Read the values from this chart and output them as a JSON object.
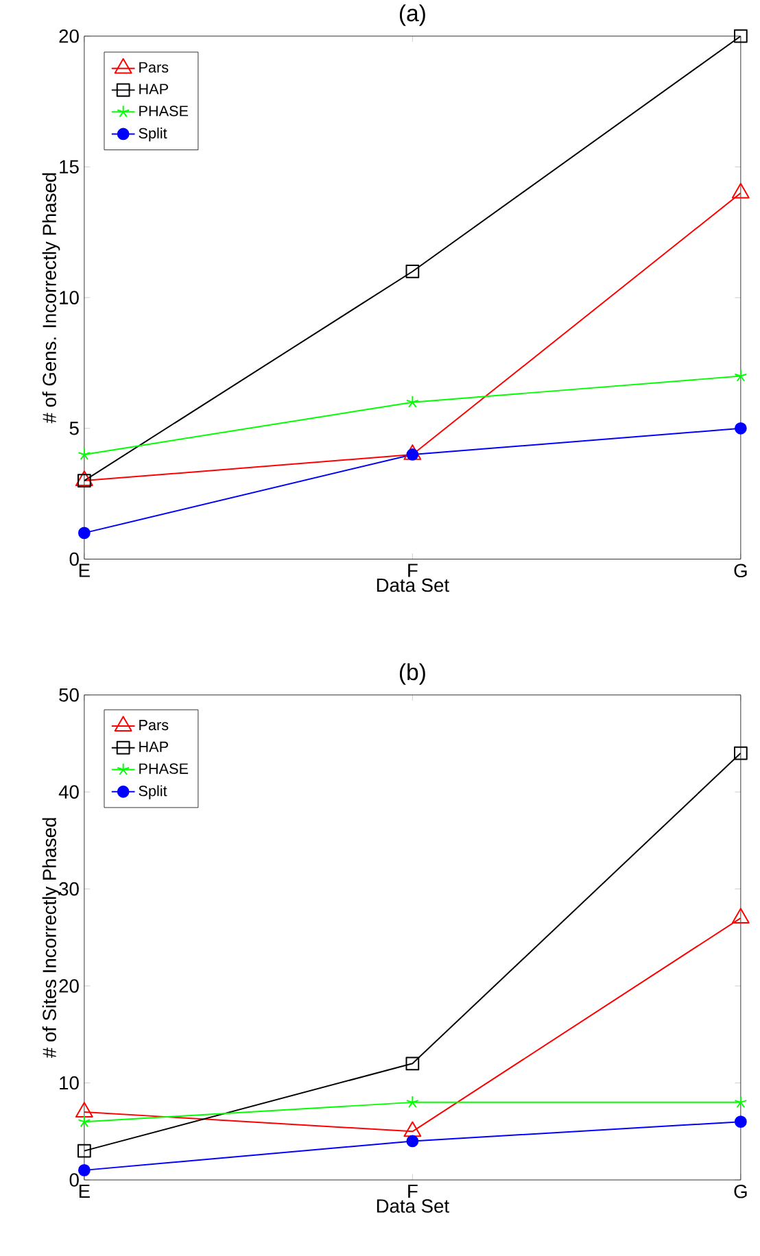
{
  "chart_data": [
    {
      "type": "line",
      "title": "(a)",
      "xlabel": "Data Set",
      "ylabel": "# of Gens. Incorrectly Phased",
      "categories": [
        "E",
        "F",
        "G"
      ],
      "ylim": [
        0,
        20
      ],
      "yticks": [
        0,
        5,
        10,
        15,
        20
      ],
      "legend": "top left",
      "series": [
        {
          "name": "Pars",
          "color": "#ff0000",
          "marker": "triangle",
          "values": [
            3,
            4,
            14
          ]
        },
        {
          "name": "HAP",
          "color": "#000000",
          "marker": "square",
          "values": [
            3,
            11,
            20
          ]
        },
        {
          "name": "PHASE",
          "color": "#00ff00",
          "marker": "cross",
          "values": [
            4,
            6,
            7
          ]
        },
        {
          "name": "Split",
          "color": "#0000ff",
          "marker": "circle",
          "values": [
            1,
            4,
            5
          ]
        }
      ]
    },
    {
      "type": "line",
      "title": "(b)",
      "xlabel": "Data Set",
      "ylabel": "# of Sites Incorrectly Phased",
      "categories": [
        "E",
        "F",
        "G"
      ],
      "ylim": [
        0,
        50
      ],
      "yticks": [
        0,
        10,
        20,
        30,
        40,
        50
      ],
      "legend": "top left",
      "series": [
        {
          "name": "Pars",
          "color": "#ff0000",
          "marker": "triangle",
          "values": [
            7,
            5,
            27
          ]
        },
        {
          "name": "HAP",
          "color": "#000000",
          "marker": "square",
          "values": [
            3,
            12,
            44
          ]
        },
        {
          "name": "PHASE",
          "color": "#00ff00",
          "marker": "cross",
          "values": [
            6,
            8,
            8
          ]
        },
        {
          "name": "Split",
          "color": "#0000ff",
          "marker": "circle",
          "values": [
            1,
            4,
            6
          ]
        }
      ]
    }
  ]
}
